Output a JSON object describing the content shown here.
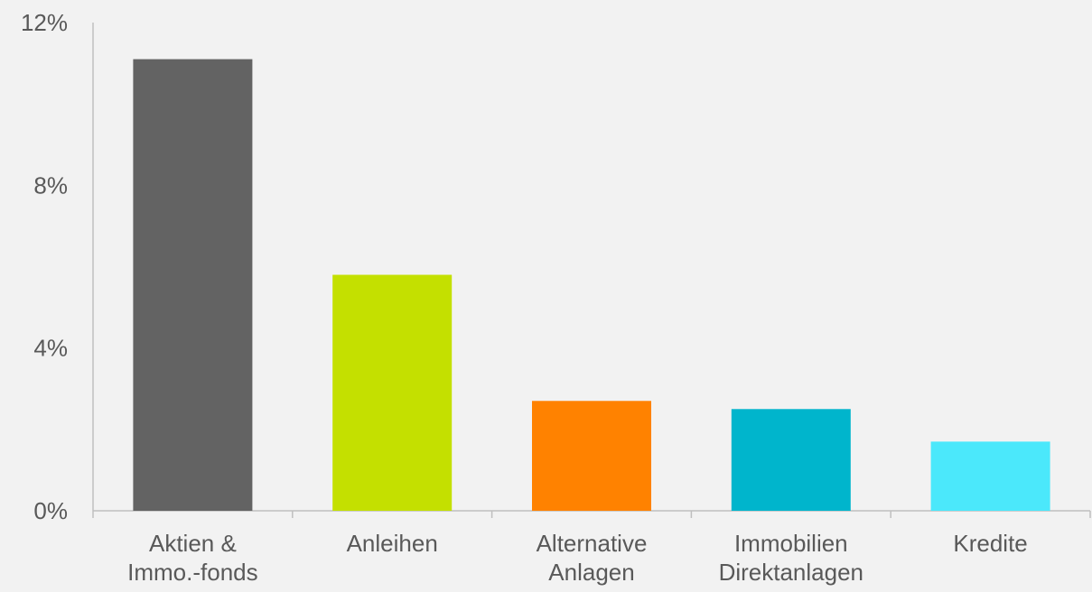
{
  "chart_data": {
    "type": "bar",
    "categories": [
      [
        "Aktien &",
        "Immo.-fonds"
      ],
      [
        "Anleihen"
      ],
      [
        "Alternative",
        "Anlagen"
      ],
      [
        "Immobilien",
        "Direktanlagen"
      ],
      [
        "Kredite"
      ]
    ],
    "values": [
      11.1,
      5.8,
      2.7,
      2.5,
      1.7
    ],
    "colors": [
      "#636363",
      "#c4e000",
      "#ff8200",
      "#00b5cc",
      "#4be8fb"
    ],
    "ylim": [
      0,
      12
    ],
    "yticks": [
      0,
      4,
      8,
      12
    ],
    "ytick_labels": [
      "0%",
      "4%",
      "8%",
      "12%"
    ],
    "title": "",
    "xlabel": "",
    "ylabel": "",
    "grid": false,
    "legend": "none",
    "axis_color": "#bfbfbf",
    "text_color": "#595959"
  }
}
